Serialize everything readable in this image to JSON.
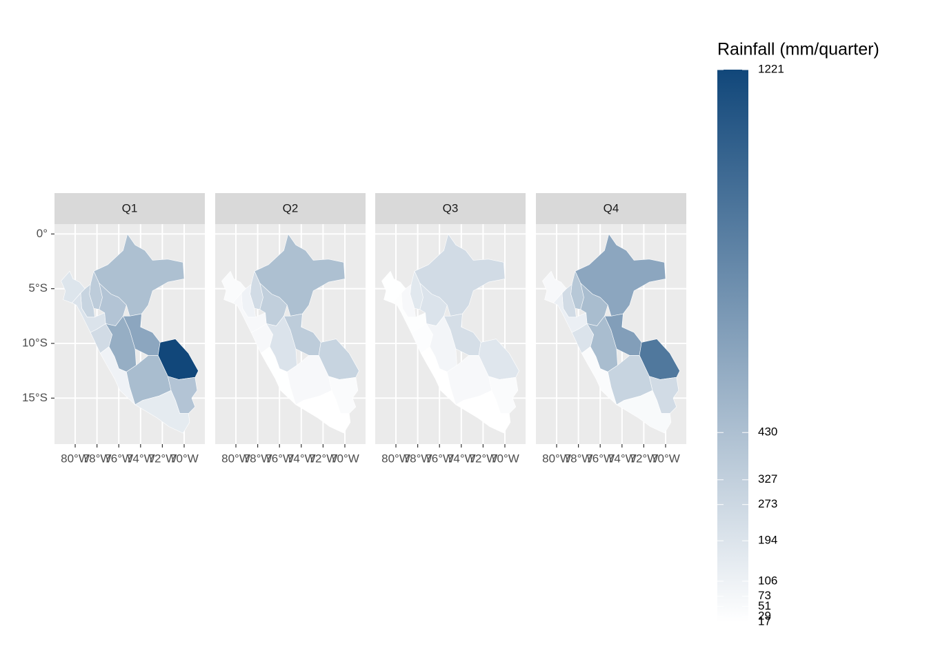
{
  "chart_data": {
    "type": "choropleth",
    "legend_title": "Rainfall (mm/quarter)",
    "color_low": "#ffffff",
    "color_high": "#11477a",
    "legend_lim": [
      17,
      1221
    ],
    "legend_ticks": [
      1221,
      430,
      327,
      273,
      194,
      106,
      73,
      51,
      29,
      17
    ],
    "xlim": [
      -81.9,
      -68.1
    ],
    "ylim": [
      -19.2,
      0.9
    ],
    "xticks": [
      {
        "value": -80,
        "label": "80°W"
      },
      {
        "value": -78,
        "label": "78°W"
      },
      {
        "value": -76,
        "label": "76°W"
      },
      {
        "value": -74,
        "label": "74°W"
      },
      {
        "value": -72,
        "label": "72°W"
      },
      {
        "value": -70,
        "label": "70°W"
      }
    ],
    "yticks": [
      {
        "value": 0,
        "label": "0°"
      },
      {
        "value": -5,
        "label": "5°S"
      },
      {
        "value": -10,
        "label": "10°S"
      },
      {
        "value": -15,
        "label": "15°S"
      }
    ],
    "grid": true,
    "panels": [
      {
        "label": "Q1",
        "values": [
          430,
          350,
          300,
          190,
          200,
          400,
          250,
          550,
          600,
          1221,
          100,
          450,
          400,
          150
        ]
      },
      {
        "label": "Q2",
        "values": [
          430,
          250,
          100,
          40,
          60,
          330,
          60,
          200,
          350,
          300,
          20,
          60,
          40,
          17
        ]
      },
      {
        "label": "Q3",
        "values": [
          250,
          170,
          60,
          20,
          25,
          200,
          30,
          80,
          230,
          180,
          17,
          60,
          40,
          17
        ]
      },
      {
        "label": "Q4",
        "values": [
          600,
          380,
          250,
          60,
          120,
          450,
          200,
          450,
          650,
          900,
          40,
          300,
          250,
          50
        ]
      }
    ]
  }
}
